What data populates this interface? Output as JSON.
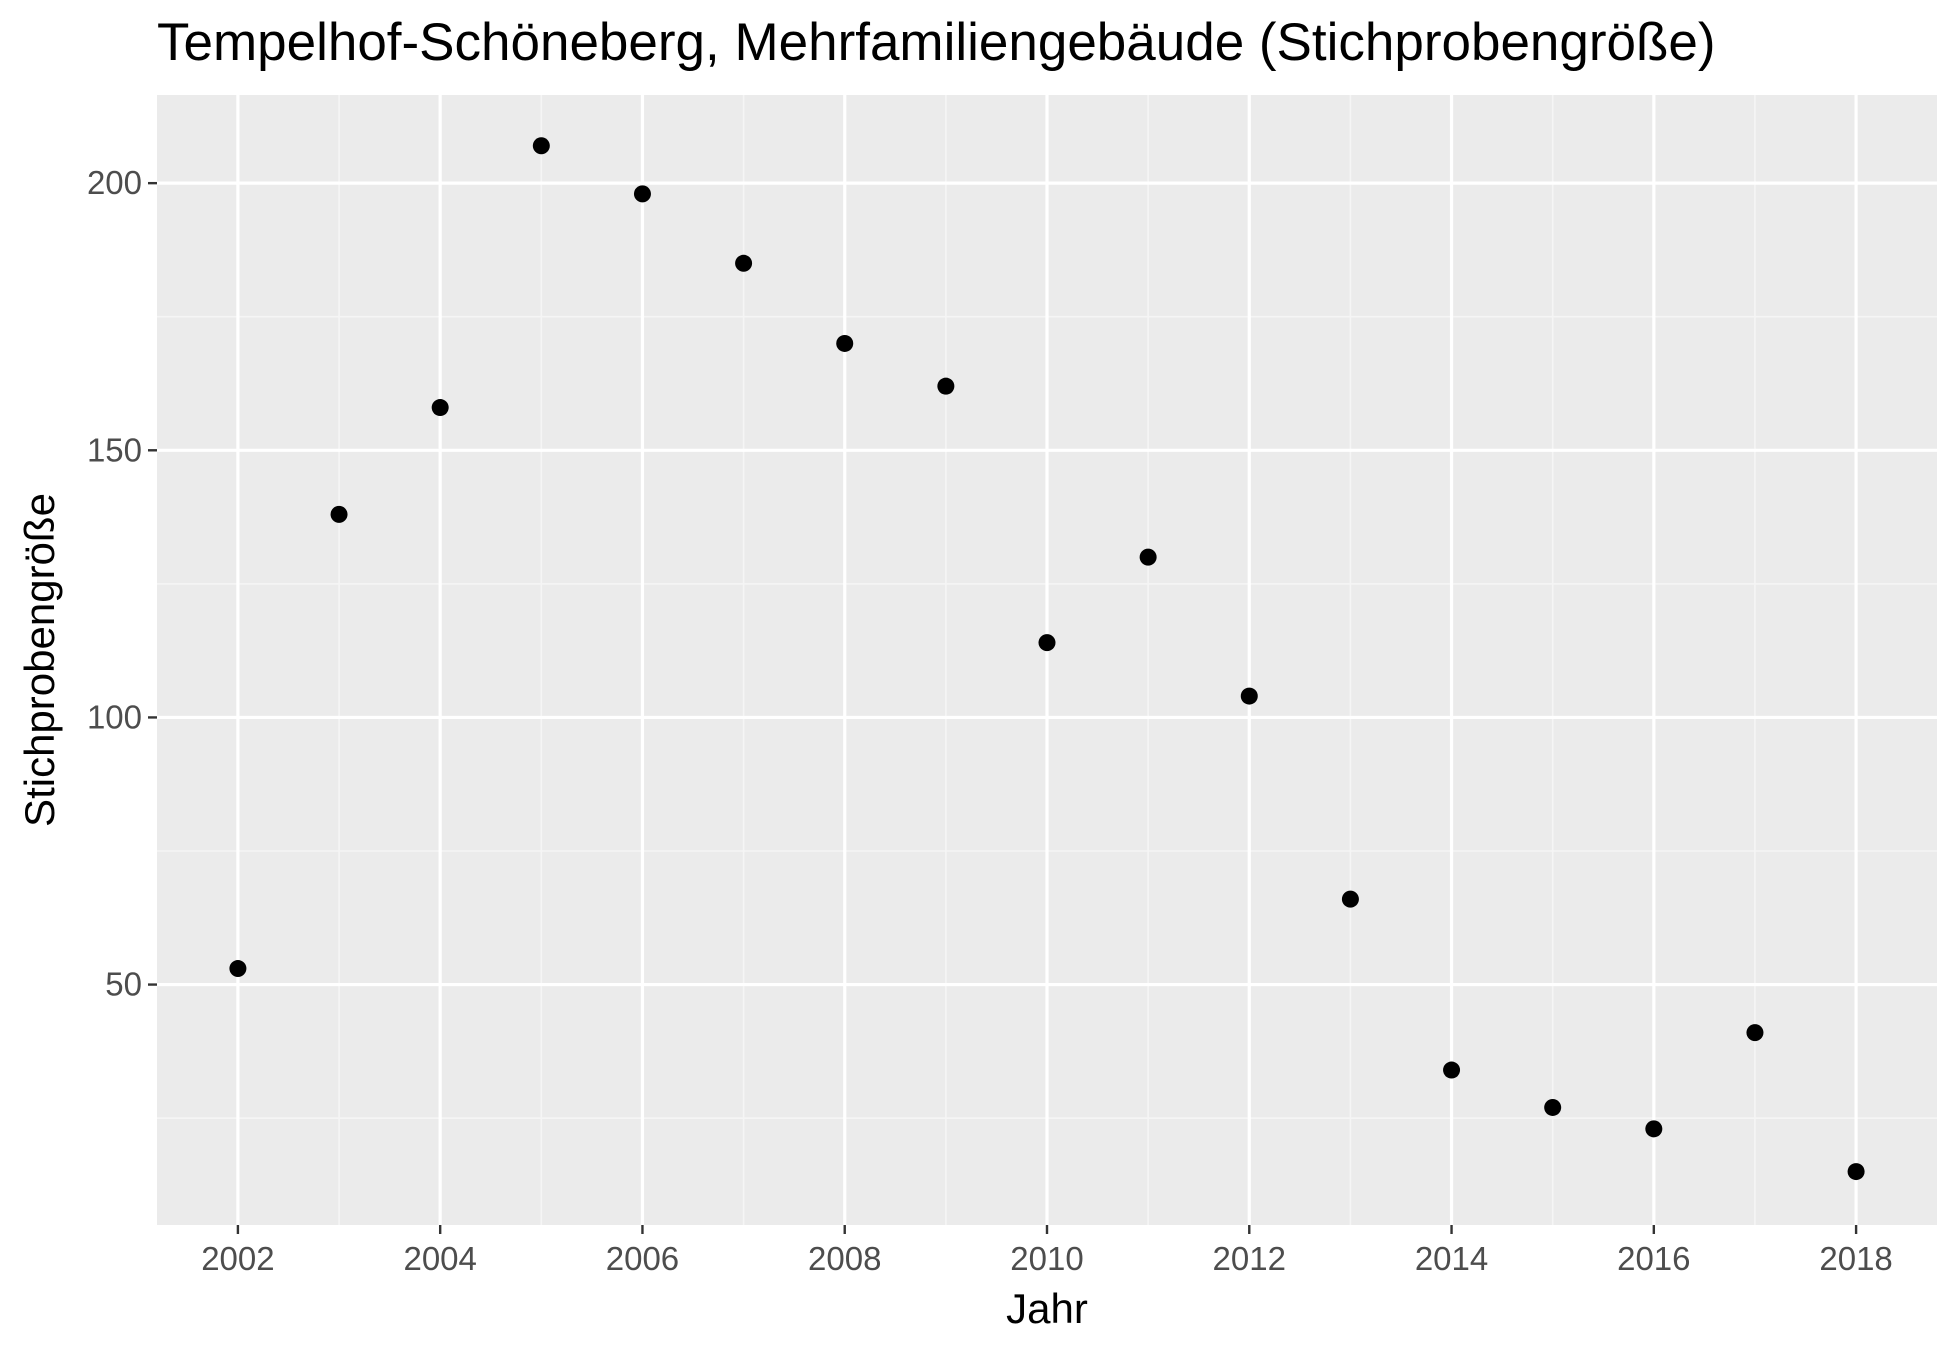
{
  "chart_data": {
    "type": "scatter",
    "title": "Tempelhof-Schöneberg, Mehrfamiliengebäude (Stichprobengröße)",
    "xlabel": "Jahr",
    "ylabel": "Stichprobengröße",
    "x": [
      2002,
      2003,
      2004,
      2005,
      2006,
      2007,
      2008,
      2009,
      2010,
      2011,
      2012,
      2013,
      2014,
      2015,
      2016,
      2017,
      2018
    ],
    "y": [
      53,
      138,
      158,
      207,
      198,
      185,
      170,
      162,
      114,
      130,
      104,
      66,
      34,
      27,
      23,
      41,
      15
    ],
    "xlim": [
      2001.2,
      2018.8
    ],
    "ylim": [
      5,
      216.5
    ],
    "x_ticks": [
      2002,
      2004,
      2006,
      2008,
      2010,
      2012,
      2014,
      2016,
      2018
    ],
    "x_tick_labels": [
      "2002",
      "2004",
      "2006",
      "2008",
      "2010",
      "2012",
      "2014",
      "2016",
      "2018"
    ],
    "y_ticks": [
      50,
      100,
      150,
      200
    ],
    "y_tick_labels": [
      "50",
      "100",
      "150",
      "200"
    ],
    "x_minor_ticks": [
      2003,
      2005,
      2007,
      2009,
      2011,
      2013,
      2015,
      2017
    ],
    "y_minor_ticks": [
      25,
      75,
      125,
      175
    ],
    "grid": true,
    "legend": "none",
    "colors": {
      "panel_background": "#ebebeb",
      "grid_major": "#ffffff",
      "grid_minor": "#f5f5f5",
      "point": "#000000",
      "tick_text": "#4d4d4d",
      "tick_mark": "#333333"
    }
  }
}
